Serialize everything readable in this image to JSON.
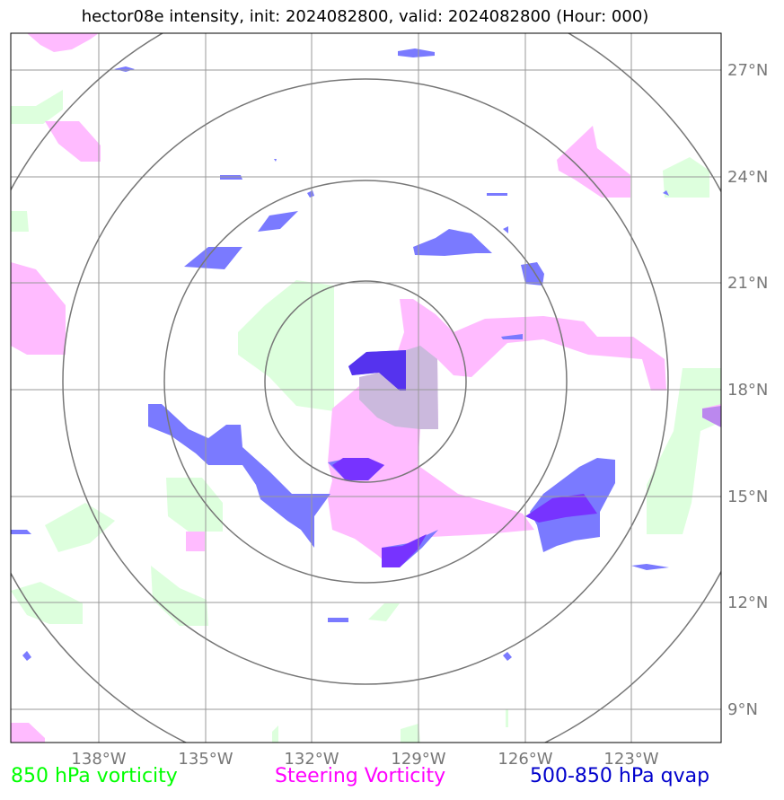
{
  "title": "hector08e intensity, init: 2024082800, valid: 2024082800 (Hour: 000)",
  "lon_ticks": [
    "138°W",
    "135°W",
    "132°W",
    "129°W",
    "126°W",
    "123°W"
  ],
  "lat_ticks": [
    "27°N",
    "24°N",
    "21°N",
    "18°N",
    "15°N",
    "12°N",
    "9°N"
  ],
  "legend": [
    {
      "label": "850 hPa vorticity",
      "color": "#00ff00"
    },
    {
      "label": "Steering Vorticity",
      "color": "#ff00ff"
    },
    {
      "label": "500-850 hPa qvap",
      "color": "#0000cc"
    }
  ],
  "colors": {
    "vorticity_850": "#ddffdd",
    "steering_vorticity": "#ffbbff",
    "qvap": "#7a7aff",
    "qvap_overlap": "#7b3dff",
    "grid": "#999999",
    "range_rings": "#777777"
  }
}
